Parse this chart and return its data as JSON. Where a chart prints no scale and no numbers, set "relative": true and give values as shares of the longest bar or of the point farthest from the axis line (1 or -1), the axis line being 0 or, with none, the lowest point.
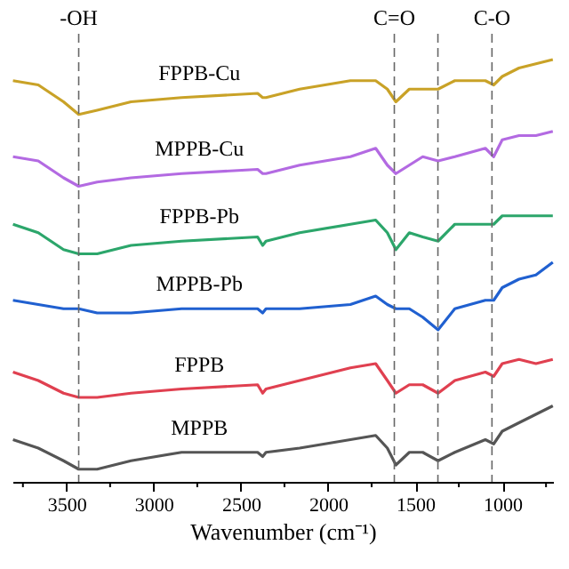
{
  "chart_data": {
    "type": "line",
    "relative": true,
    "xlabel": "Wavenumber (cm⁻¹)",
    "xlim": [
      3810,
      710
    ],
    "xticks": [
      {
        "value": 3750,
        "label": null
      },
      3500,
      {
        "value": 3250,
        "label": null
      },
      3000,
      {
        "value": 2750,
        "label": null
      },
      2500,
      {
        "value": 2250,
        "label": null
      },
      2000,
      {
        "value": 1750,
        "label": null
      },
      1500,
      {
        "value": 1250,
        "label": null
      },
      1000,
      {
        "value": 750,
        "label": null
      }
    ],
    "tick_labels": "x",
    "grid": false,
    "legend": false,
    "marker": "none",
    "line_style": "solid",
    "x": [
      3807,
      3662,
      3517,
      3430,
      3324,
      3130,
      2840,
      2404,
      2375,
      2356,
      2163,
      1872,
      1727,
      1660,
      1611,
      1534,
      1457,
      1369,
      1273,
      1098,
      1050,
      1001,
      905,
      808,
      711
    ],
    "series": [
      {
        "name": "FPPB-Cu",
        "color": "#c9a227",
        "values": [
          0.95,
          0.94,
          0.9,
          0.87,
          0.88,
          0.9,
          0.91,
          0.92,
          0.91,
          0.91,
          0.93,
          0.95,
          0.95,
          0.93,
          0.9,
          0.93,
          0.93,
          0.93,
          0.95,
          0.95,
          0.94,
          0.96,
          0.98,
          0.99,
          1.0
        ]
      },
      {
        "name": "MPPB-Cu",
        "color": "#b36ae2",
        "values": [
          0.77,
          0.76,
          0.72,
          0.7,
          0.71,
          0.72,
          0.73,
          0.74,
          0.73,
          0.73,
          0.75,
          0.77,
          0.79,
          0.75,
          0.73,
          0.75,
          0.77,
          0.76,
          0.77,
          0.79,
          0.77,
          0.81,
          0.82,
          0.82,
          0.83
        ]
      },
      {
        "name": "FPPB-Pb",
        "color": "#2ca66b",
        "values": [
          0.61,
          0.59,
          0.55,
          0.54,
          0.54,
          0.56,
          0.57,
          0.58,
          0.56,
          0.57,
          0.59,
          0.61,
          0.62,
          0.59,
          0.55,
          0.59,
          0.58,
          0.57,
          0.61,
          0.61,
          0.61,
          0.63,
          0.63,
          0.63,
          0.63
        ]
      },
      {
        "name": "MPPB-Pb",
        "color": "#2060d0",
        "values": [
          0.43,
          0.42,
          0.41,
          0.41,
          0.4,
          0.4,
          0.41,
          0.41,
          0.4,
          0.41,
          0.41,
          0.42,
          0.44,
          0.42,
          0.41,
          0.41,
          0.39,
          0.36,
          0.41,
          0.43,
          0.43,
          0.46,
          0.48,
          0.49,
          0.52
        ]
      },
      {
        "name": "FPPB",
        "color": "#e04050",
        "values": [
          0.26,
          0.24,
          0.21,
          0.2,
          0.2,
          0.21,
          0.22,
          0.23,
          0.21,
          0.22,
          0.24,
          0.27,
          0.28,
          0.24,
          0.21,
          0.23,
          0.23,
          0.21,
          0.24,
          0.26,
          0.25,
          0.28,
          0.29,
          0.28,
          0.29
        ]
      },
      {
        "name": "MPPB",
        "color": "#555555",
        "values": [
          0.1,
          0.08,
          0.05,
          0.03,
          0.03,
          0.05,
          0.07,
          0.07,
          0.06,
          0.07,
          0.08,
          0.1,
          0.11,
          0.08,
          0.04,
          0.07,
          0.07,
          0.05,
          0.07,
          0.1,
          0.09,
          0.12,
          0.14,
          0.16,
          0.18
        ]
      }
    ],
    "ref_lines": [
      {
        "axis": "x",
        "value": 3430,
        "label": "-OH",
        "color": "#666666",
        "line_style": "dashed"
      },
      {
        "axis": "x",
        "value": 1620,
        "label": "C=O",
        "color": "#666666",
        "line_style": "dashed"
      },
      {
        "axis": "x",
        "value": 1370,
        "label": null,
        "color": "#666666",
        "line_style": "dashed"
      },
      {
        "axis": "x",
        "value": 1060,
        "label": "C-O",
        "color": "#666666",
        "line_style": "dashed"
      }
    ]
  }
}
